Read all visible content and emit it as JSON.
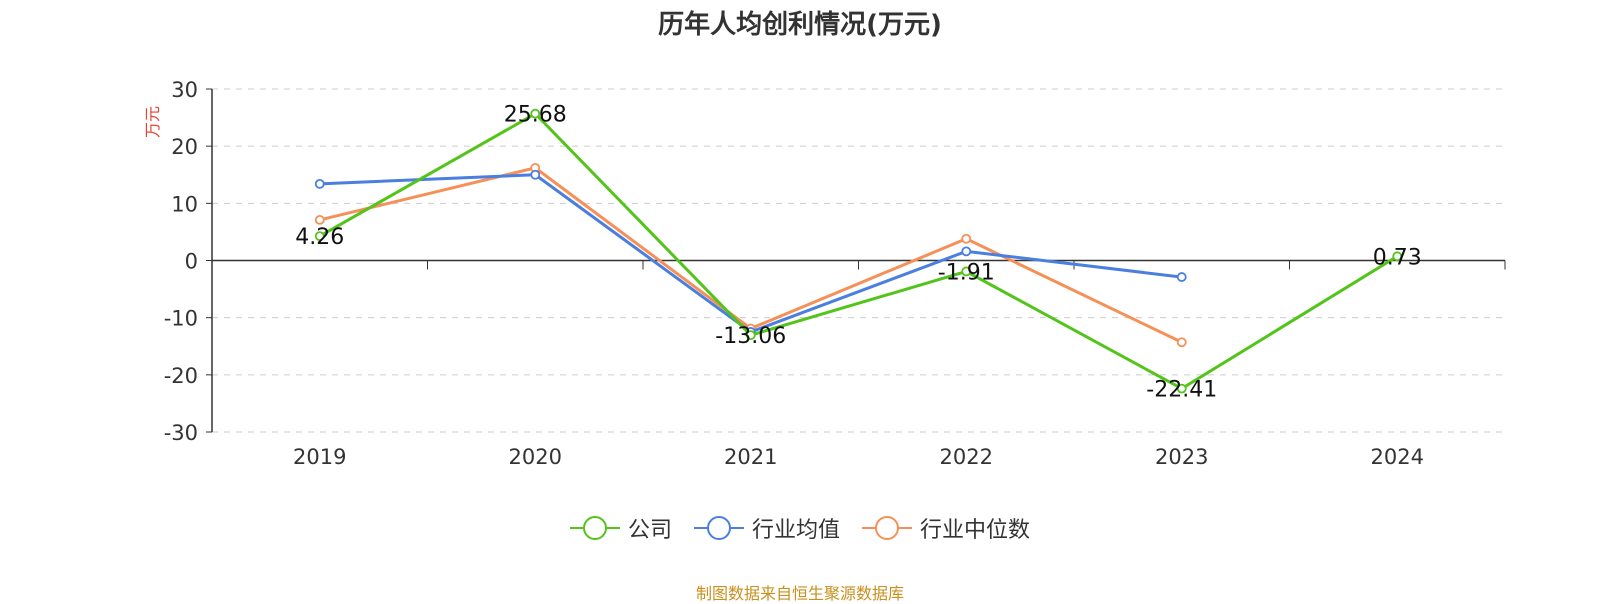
{
  "chart_data": {
    "type": "line",
    "title": "历年人均创利情况(万元)",
    "ylabel": "万元",
    "xlabel": "",
    "categories": [
      "2019",
      "2020",
      "2021",
      "2022",
      "2023",
      "2024"
    ],
    "ylim": [
      -30,
      30
    ],
    "yticks": [
      30,
      20,
      10,
      0,
      -10,
      -20,
      -30
    ],
    "grid": true,
    "legend_position": "bottom",
    "series": [
      {
        "name": "公司",
        "color": "#52c41a",
        "values": [
          4.26,
          25.68,
          -13.06,
          -1.91,
          -22.41,
          0.73
        ],
        "labels": [
          "4.26",
          "25.68",
          "-13.06",
          "-1.91",
          "-22.41",
          "0.73"
        ]
      },
      {
        "name": "行业均值",
        "color": "#4a7fe0",
        "values": [
          13.4,
          15.0,
          -12.5,
          1.6,
          -2.9,
          null
        ]
      },
      {
        "name": "行业中位数",
        "color": "#f59058",
        "values": [
          7.1,
          16.2,
          -11.9,
          3.8,
          -14.3,
          null
        ]
      }
    ]
  },
  "source": "制图数据来自恒生聚源数据库"
}
